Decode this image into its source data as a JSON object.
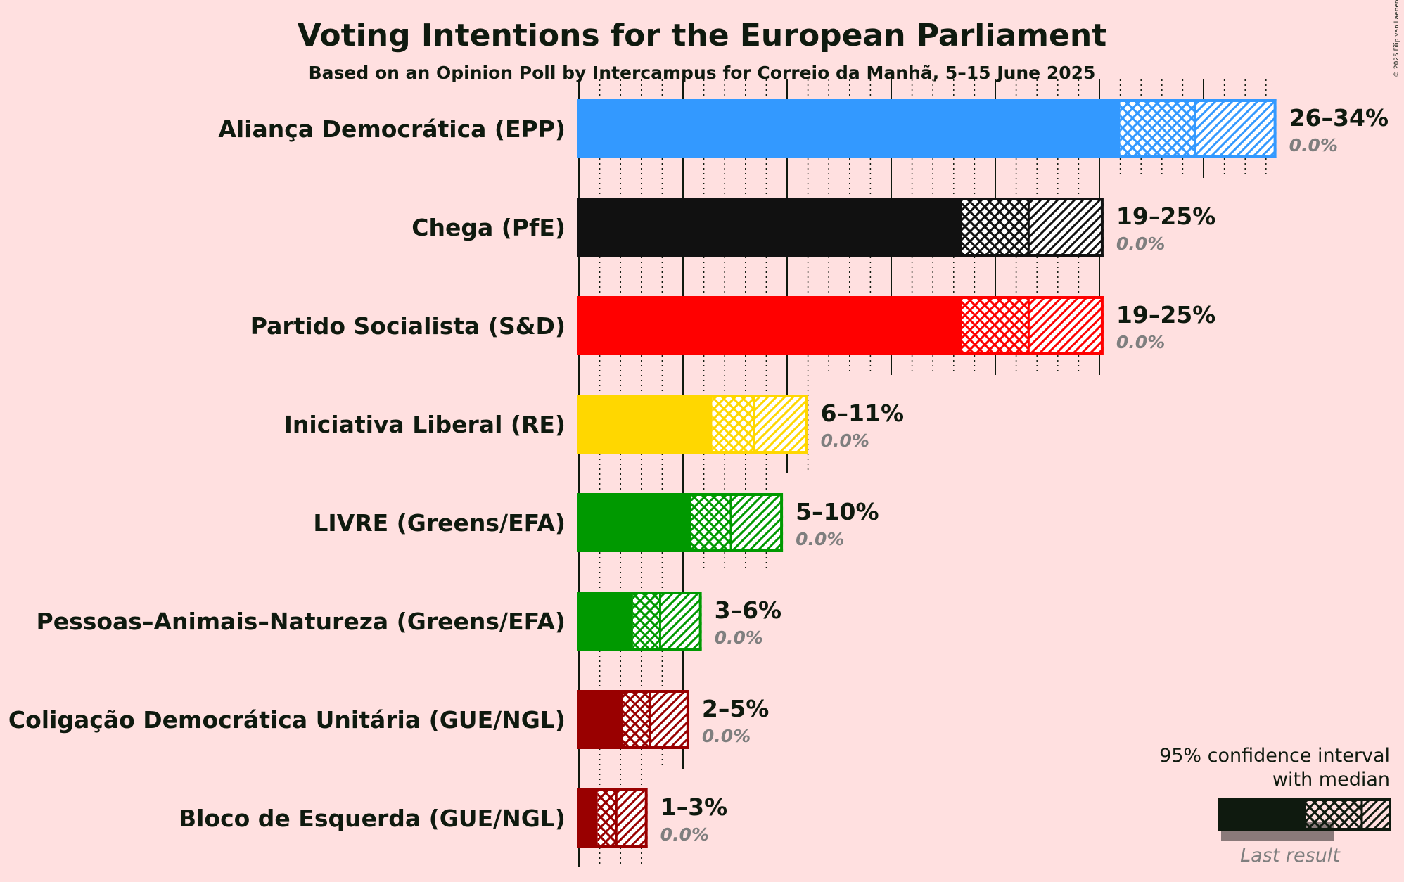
{
  "chart_data": {
    "type": "bar",
    "orientation": "horizontal",
    "title": "Voting Intentions for the European Parliament",
    "subtitle": "Based on an Opinion Poll by Intercampus for Correio da Manhã, 5–15 June 2025",
    "xlim": [
      0,
      35
    ],
    "grid": "vertical dotted lines at every 1%, solid lines at every 5%",
    "categories": [
      "Aliança Democrática (EPP)",
      "Chega (PfE)",
      "Partido Socialista (S&D)",
      "Iniciativa Liberal (RE)",
      "LIVRE (Greens/EFA)",
      "Pessoas–Animais–Natureza (Greens/EFA)",
      "Coligação Democrática Unitária (GUE/NGL)",
      "Bloco de Esquerda (GUE/NGL)"
    ],
    "series": [
      {
        "party": "Aliança Democrática (EPP)",
        "color": "#3399ff",
        "ci_low": 26,
        "median": 29.6,
        "ci_high": 33.5,
        "range_label": "26–34%",
        "last_result_label": "0.0%",
        "last_result": 0
      },
      {
        "party": "Chega (PfE)",
        "color": "#111111",
        "ci_low": 18.4,
        "median": 21.6,
        "ci_high": 25.2,
        "range_label": "19–25%",
        "last_result_label": "0.0%",
        "last_result": 0
      },
      {
        "party": "Partido Socialista (S&D)",
        "color": "#ff0000",
        "ci_low": 18.4,
        "median": 21.6,
        "ci_high": 25.2,
        "range_label": "19–25%",
        "last_result_label": "0.0%",
        "last_result": 0
      },
      {
        "party": "Iniciativa Liberal (RE)",
        "color": "#ffd700",
        "ci_low": 6.4,
        "median": 8.4,
        "ci_high": 11,
        "range_label": "6–11%",
        "last_result_label": "0.0%",
        "last_result": 0
      },
      {
        "party": "LIVRE (Greens/EFA)",
        "color": "#009900",
        "ci_low": 5.4,
        "median": 7.3,
        "ci_high": 9.8,
        "range_label": "5–10%",
        "last_result_label": "0.0%",
        "last_result": 0
      },
      {
        "party": "Pessoas–Animais–Natureza (Greens/EFA)",
        "color": "#009900",
        "ci_low": 2.6,
        "median": 3.9,
        "ci_high": 5.9,
        "range_label": "3–6%",
        "last_result_label": "0.0%",
        "last_result": 0
      },
      {
        "party": "Coligação Democrática Unitária (GUE/NGL)",
        "color": "#990000",
        "ci_low": 2.1,
        "median": 3.4,
        "ci_high": 5.3,
        "range_label": "2–5%",
        "last_result_label": "0.0%",
        "last_result": 0
      },
      {
        "party": "Bloco de Esquerda (GUE/NGL)",
        "color": "#990000",
        "ci_low": 0.9,
        "median": 1.8,
        "ci_high": 3.3,
        "range_label": "1–3%",
        "last_result_label": "0.0%",
        "last_result": 0
      }
    ]
  },
  "legend": {
    "line1": "95% confidence interval",
    "line2": "with median",
    "last_result": "Last result",
    "color": "#0f1a0f"
  },
  "copyright": "© 2025 Filip van Laenen"
}
